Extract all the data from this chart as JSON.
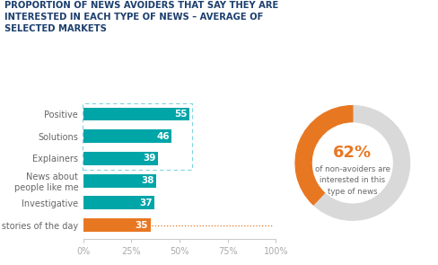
{
  "title": "PROPORTION OF NEWS AVOIDERS THAT SAY THEY ARE\nINTERESTED IN EACH TYPE OF NEWS – AVERAGE OF\nSELECTED MARKETS",
  "categories": [
    "Big stories of the day",
    "Investigative",
    "News about\npeople like me",
    "Explainers",
    "Solutions",
    "Positive"
  ],
  "values": [
    35,
    37,
    38,
    39,
    46,
    55
  ],
  "bar_colors": [
    "#E87722",
    "#00A5A8",
    "#00A5A8",
    "#00A5A8",
    "#00A5A8",
    "#00A5A8"
  ],
  "teal": "#00A5A8",
  "orange": "#E87722",
  "title_color": "#1c3f6e",
  "label_color": "#666666",
  "value_label_color": "#ffffff",
  "xlabel_ticks": [
    "0%",
    "25%",
    "50%",
    "75%",
    "100%"
  ],
  "xlabel_values": [
    0,
    25,
    50,
    75,
    100
  ],
  "xlim": [
    0,
    100
  ],
  "donut_value": "62%",
  "donut_text": "of non-avoiders are\ninterested in this\ntype of news",
  "donut_orange": "#E87722",
  "donut_gray": "#d9d9d9",
  "dotted_box_color": "#7fd4e0",
  "background_color": "#ffffff"
}
